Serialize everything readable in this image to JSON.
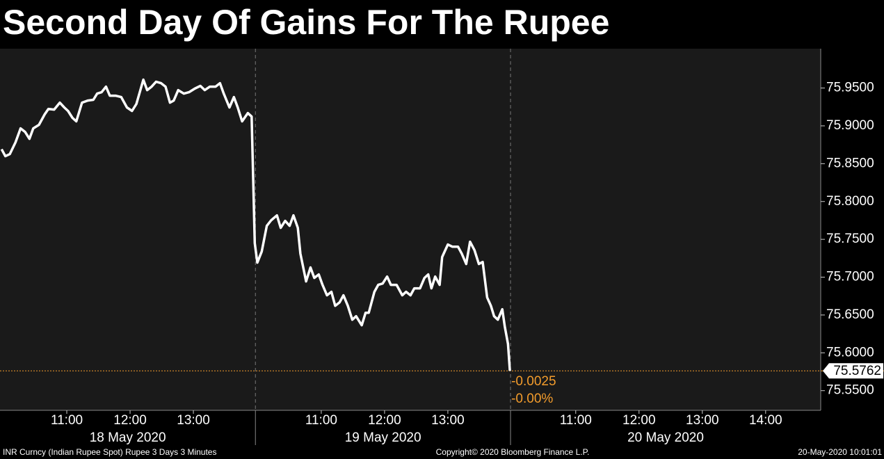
{
  "chart_data": {
    "type": "line",
    "title": "Second Day Of Gains For The Rupee",
    "color": "#ffffff",
    "ref_color": "#f39c2c",
    "x": [
      9.97,
      10.03,
      10.1,
      10.19,
      10.27,
      10.34,
      10.41,
      10.47,
      10.56,
      10.65,
      10.71,
      10.8,
      10.89,
      10.96,
      11.02,
      11.09,
      11.15,
      11.24,
      11.33,
      11.42,
      11.48,
      11.55,
      11.62,
      11.68,
      11.77,
      11.86,
      11.95,
      12.03,
      12.1,
      12.21,
      12.27,
      12.34,
      12.41,
      12.49,
      12.56,
      12.63,
      12.69,
      12.76,
      12.85,
      12.93,
      13.02,
      13.11,
      13.18,
      13.26,
      13.35,
      13.42,
      13.48,
      13.57,
      13.64,
      13.7,
      13.77,
      13.86,
      13.92,
      13.97,
      14.01,
      14.08,
      14.16,
      14.23,
      14.32,
      14.38,
      14.45,
      14.52,
      14.58,
      14.65,
      14.69,
      14.78,
      14.85,
      14.91,
      14.98,
      15.04,
      15.11,
      15.18,
      15.24,
      15.31,
      15.37,
      15.44,
      15.51,
      15.57,
      15.66,
      15.72,
      15.77,
      15.86,
      15.92,
      15.99,
      16.06,
      16.12,
      16.21,
      16.3,
      16.36,
      16.43,
      16.49,
      16.58,
      16.65,
      16.71,
      16.76,
      16.82,
      16.89,
      16.93,
      17.02,
      17.09,
      17.18,
      17.24,
      17.31,
      17.37,
      17.44,
      17.51,
      17.57,
      17.64,
      17.7,
      17.75,
      17.81,
      17.88,
      17.92,
      17.97,
      18.0
    ],
    "values": [
      75.8691,
      75.8599,
      75.8626,
      75.8783,
      75.8967,
      75.8921,
      75.8829,
      75.8967,
      75.9013,
      75.9151,
      75.9224,
      75.9215,
      75.9307,
      75.9243,
      75.9197,
      75.9105,
      75.9059,
      75.9307,
      75.9334,
      75.9344,
      75.9426,
      75.9445,
      75.9518,
      75.9399,
      75.9399,
      75.938,
      75.9243,
      75.9197,
      75.9289,
      75.961,
      75.9472,
      75.9518,
      75.9583,
      75.9564,
      75.9518,
      75.9307,
      75.9334,
      75.9472,
      75.9426,
      75.9445,
      75.9491,
      75.9528,
      75.9472,
      75.9518,
      75.9518,
      75.9564,
      75.9426,
      75.9243,
      75.938,
      75.9243,
      75.9059,
      75.9169,
      75.9123,
      75.7449,
      75.7192,
      75.7339,
      75.7679,
      75.7753,
      75.7817,
      75.7652,
      75.7744,
      75.7679,
      75.7817,
      75.7652,
      75.7311,
      75.6944,
      75.7128,
      75.699,
      75.7036,
      75.6898,
      75.676,
      75.6806,
      75.6622,
      75.6668,
      75.676,
      75.6622,
      75.6438,
      75.6484,
      75.6364,
      75.653,
      75.653,
      75.6806,
      75.6898,
      75.6916,
      75.7008,
      75.6898,
      75.6898,
      75.676,
      75.6806,
      75.676,
      75.6852,
      75.6852,
      75.699,
      75.7036,
      75.6852,
      75.7008,
      75.6898,
      75.7266,
      75.7431,
      75.7403,
      75.7403,
      75.7311,
      75.7174,
      75.7468,
      75.7357,
      75.7174,
      75.7201,
      75.6732,
      75.6622,
      75.6484,
      75.6438,
      75.6576,
      75.6346,
      75.6116,
      75.5762
    ],
    "xlim": [
      9.945,
      22.91
    ],
    "xticks": [
      {
        "value": 11,
        "label": "11:00"
      },
      {
        "value": 12,
        "label": "12:00"
      },
      {
        "value": 13,
        "label": "13:00"
      },
      {
        "value": 15.02,
        "label": "11:00"
      },
      {
        "value": 16.02,
        "label": "12:00"
      },
      {
        "value": 17.02,
        "label": "13:00"
      },
      {
        "value": 19.04,
        "label": "11:00"
      },
      {
        "value": 20.04,
        "label": "12:00"
      },
      {
        "value": 21.04,
        "label": "13:00"
      },
      {
        "value": 22.04,
        "label": "14:00"
      }
    ],
    "xgroups": [
      {
        "label": "18 May 2020",
        "range": [
          9.945,
          13.98
        ]
      },
      {
        "label": "19 May 2020",
        "range": [
          13.98,
          18.01
        ]
      },
      {
        "label": "20 May 2020",
        "range": [
          18.01,
          22.91
        ]
      }
    ],
    "ylim": [
      75.524,
      76.002
    ],
    "yticks": [
      {
        "value": 75.55,
        "label": "75.5500"
      },
      {
        "value": 75.6,
        "label": "75.6000"
      },
      {
        "value": 75.65,
        "label": "75.6500"
      },
      {
        "value": 75.7,
        "label": "75.7000"
      },
      {
        "value": 75.75,
        "label": "75.7500"
      },
      {
        "value": 75.8,
        "label": "75.8000"
      },
      {
        "value": 75.85,
        "label": "75.8500"
      },
      {
        "value": 75.9,
        "label": "75.9000"
      },
      {
        "value": 75.95,
        "label": "75.9500"
      }
    ],
    "last_value": 75.5762,
    "change": -0.0025,
    "change_pct": "-0.00%",
    "footer": {
      "left": "INR Curncy (Indian Rupee Spot) Rupee 3 Days 3 Minutes",
      "center": "Copyright© 2020 Bloomberg Finance L.P.",
      "right": "20-May-2020 10:01:01"
    }
  }
}
